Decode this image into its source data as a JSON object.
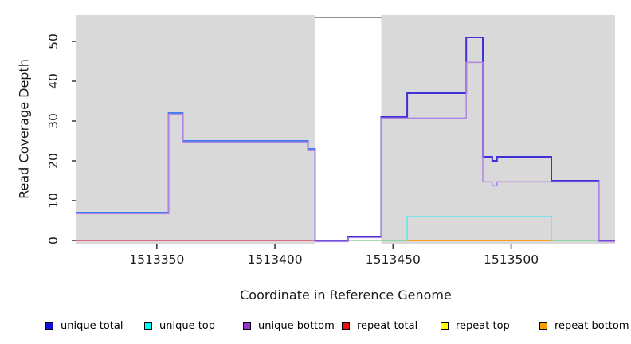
{
  "chart_data": {
    "type": "line",
    "subtype": "step-coverage",
    "title": "",
    "xlabel": "Coordinate in Reference Genome",
    "ylabel": "Read Coverage Depth",
    "xlim": [
      1513316,
      1513544
    ],
    "ylim": [
      0,
      56
    ],
    "xticks": [
      1513350,
      1513400,
      1513450,
      1513500
    ],
    "yticks": [
      0,
      10,
      20,
      30,
      40,
      50
    ],
    "grid": "off",
    "plot_bg_color": "#d9d9d9",
    "shaded_regions": [
      {
        "x1": 1513316,
        "x2": 1513417
      },
      {
        "x1": 1513445,
        "x2": 1513544
      }
    ],
    "gap_region": {
      "x1": 1513417,
      "x2": 1513445,
      "fill": "#ffffff",
      "top_border_color": "#8f8f8f"
    },
    "legend_position": "bottom",
    "legend": [
      {
        "label": "unique total",
        "color": "#1111dd"
      },
      {
        "label": "unique top",
        "color": "#00ffff"
      },
      {
        "label": "unique bottom",
        "color": "#9932cc"
      },
      {
        "label": "repeat total",
        "color": "#ee1111"
      },
      {
        "label": "repeat top",
        "color": "#ffff00"
      },
      {
        "label": "repeat bottom",
        "color": "#ff9900"
      }
    ],
    "lines": [
      {
        "series": "repeat-total-zero-line",
        "color": "#dc4a68",
        "width": 1.6,
        "dy": 0,
        "segments": [
          [
            1513316,
            1513417,
            0
          ]
        ]
      },
      {
        "series": "unique-top",
        "color": "#70e5e8",
        "width": 1.8,
        "dy": 0,
        "segments": [
          [
            1513445,
            1513456,
            0
          ],
          [
            1513456,
            1513517,
            6
          ],
          [
            1513517,
            1513537,
            0
          ]
        ]
      },
      {
        "series": "repeat-top-unique-top-zero-blend",
        "color": "#90cc92",
        "width": 1.5,
        "dy": 0,
        "segments": [
          [
            1513431,
            1513456,
            0
          ],
          [
            1513517,
            1513537,
            0
          ]
        ]
      },
      {
        "series": "repeat-bottom-zero-line",
        "color": "#ff9800",
        "width": 1.8,
        "dy": 0,
        "segments": [
          [
            1513456,
            1513517,
            0
          ]
        ]
      },
      {
        "series": "unique-total-left",
        "color": "#3b7cf0",
        "width": 1.9,
        "dy": 0,
        "segments": [
          [
            1513316,
            1513355,
            7
          ],
          [
            1513355,
            1513361,
            32
          ],
          [
            1513361,
            1513414,
            25
          ],
          [
            1513414,
            1513417,
            23
          ],
          [
            1513417,
            1513418,
            0
          ]
        ]
      },
      {
        "series": "unique-total-right",
        "color": "#4030d8",
        "width": 2.0,
        "dy": 0,
        "segments": [
          [
            1513417,
            1513431,
            0
          ],
          [
            1513431,
            1513445,
            1
          ],
          [
            1513445,
            1513456,
            31
          ],
          [
            1513456,
            1513481,
            37
          ],
          [
            1513481,
            1513488,
            51
          ],
          [
            1513488,
            1513492,
            21
          ],
          [
            1513492,
            1513494,
            20
          ],
          [
            1513494,
            1513517,
            21
          ],
          [
            1513517,
            1513537,
            15
          ],
          [
            1513537,
            1513544,
            0
          ]
        ]
      },
      {
        "series": "unique-bottom",
        "color": "#b284e0",
        "width": 1.5,
        "dy": 1.4,
        "segments": [
          [
            1513316,
            1513355,
            7
          ],
          [
            1513355,
            1513361,
            32
          ],
          [
            1513361,
            1513414,
            25
          ],
          [
            1513414,
            1513417,
            23
          ],
          [
            1513417,
            1513431,
            0
          ],
          [
            1513431,
            1513445,
            1
          ],
          [
            1513445,
            1513481,
            31
          ],
          [
            1513481,
            1513488,
            45
          ],
          [
            1513488,
            1513492,
            15
          ],
          [
            1513492,
            1513494,
            14
          ],
          [
            1513494,
            1513537,
            15
          ],
          [
            1513537,
            1513544,
            0
          ]
        ]
      }
    ]
  }
}
